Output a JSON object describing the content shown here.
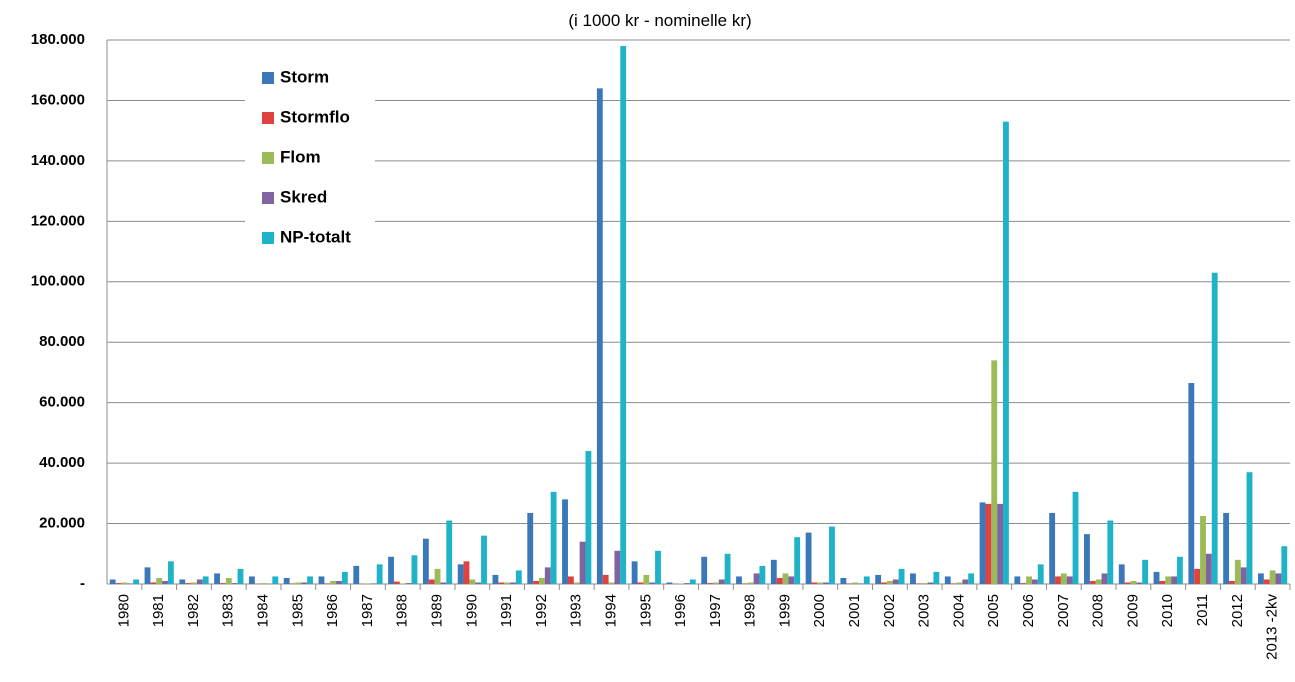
{
  "chart_data": {
    "type": "bar",
    "title": "(i 1000 kr - nominelle kr)",
    "categories": [
      "1980",
      "1981",
      "1982",
      "1983",
      "1984",
      "1985",
      "1986",
      "1987",
      "1988",
      "1989",
      "1990",
      "1991",
      "1992",
      "1993",
      "1994",
      "1995",
      "1996",
      "1997",
      "1998",
      "1999",
      "2000",
      "2001",
      "2002",
      "2003",
      "2004",
      "2005",
      "2006",
      "2007",
      "2008",
      "2009",
      "2010",
      "2011",
      "2012",
      "2013 -2kv"
    ],
    "series": [
      {
        "name": "Storm",
        "color": "#3a78b8",
        "values": [
          1500,
          5500,
          1500,
          3500,
          2500,
          2000,
          2500,
          6000,
          9000,
          15000,
          6500,
          3000,
          23500,
          28000,
          164000,
          7500,
          500,
          9000,
          2500,
          8000,
          17000,
          2000,
          3000,
          3500,
          2500,
          27000,
          2500,
          23500,
          16500,
          6500,
          4000,
          66500,
          23500,
          3500
        ]
      },
      {
        "name": "Stormflo",
        "color": "#e0433f",
        "values": [
          300,
          500,
          300,
          300,
          100,
          200,
          200,
          100,
          800,
          1500,
          7500,
          500,
          1000,
          2500,
          3000,
          500,
          100,
          300,
          200,
          2000,
          500,
          200,
          500,
          200,
          200,
          26500,
          300,
          2500,
          1000,
          500,
          1000,
          5000,
          1000,
          1500
        ]
      },
      {
        "name": "Flom",
        "color": "#9bbb59",
        "values": [
          500,
          2000,
          500,
          2000,
          300,
          500,
          1000,
          200,
          200,
          5000,
          1500,
          500,
          2000,
          500,
          500,
          3000,
          100,
          500,
          500,
          3500,
          500,
          500,
          1000,
          300,
          500,
          74000,
          2500,
          3500,
          1500,
          1000,
          2500,
          22500,
          8000,
          4500
        ]
      },
      {
        "name": "Skred",
        "color": "#8064a2",
        "values": [
          200,
          1000,
          1500,
          300,
          100,
          500,
          1000,
          200,
          300,
          500,
          500,
          500,
          5500,
          14000,
          11000,
          500,
          300,
          1500,
          3500,
          2500,
          500,
          200,
          1500,
          500,
          1500,
          26500,
          1500,
          2500,
          3500,
          500,
          2500,
          10000,
          5500,
          3500
        ]
      },
      {
        "name": "NP-totalt",
        "color": "#1fb3c8",
        "values": [
          1500,
          7500,
          2500,
          5000,
          2500,
          2500,
          4000,
          6500,
          9500,
          21000,
          16000,
          4500,
          30500,
          44000,
          178000,
          11000,
          1500,
          10000,
          6000,
          15500,
          19000,
          2500,
          5000,
          4000,
          3500,
          153000,
          6500,
          30500,
          21000,
          8000,
          9000,
          103000,
          37000,
          12500
        ]
      }
    ],
    "ylim": [
      0,
      180000
    ],
    "yticks": [
      {
        "value": 0,
        "label": "-"
      },
      {
        "value": 20000,
        "label": "20.000"
      },
      {
        "value": 40000,
        "label": "40.000"
      },
      {
        "value": 60000,
        "label": "60.000"
      },
      {
        "value": 80000,
        "label": "80.000"
      },
      {
        "value": 100000,
        "label": "100.000"
      },
      {
        "value": 120000,
        "label": "120.000"
      },
      {
        "value": 140000,
        "label": "140.000"
      },
      {
        "value": 160000,
        "label": "160.000"
      },
      {
        "value": 180000,
        "label": "180.000"
      }
    ],
    "grid": true,
    "legend": "upper-left"
  }
}
